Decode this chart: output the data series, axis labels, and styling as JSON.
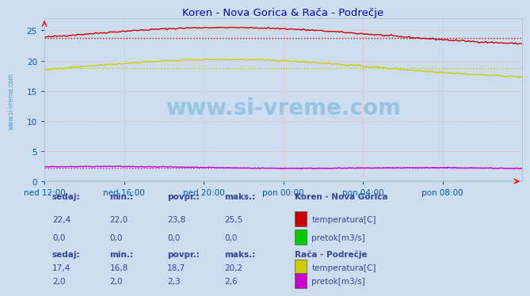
{
  "title": "Koren - Nova Gorica & Rača - Podrečje",
  "title_color": "#0000cc",
  "bg_color": "#ccddef",
  "plot_bg_color": "#ccddef",
  "grid_color": "#ffaaaa",
  "xlabel_color": "#0055aa",
  "ylabel_color": "#0055aa",
  "xlim": [
    0,
    288
  ],
  "ylim": [
    0,
    27
  ],
  "yticks": [
    0,
    5,
    10,
    15,
    20,
    25
  ],
  "xtick_labels": [
    "ned 12:00",
    "ned 16:00",
    "ned 20:00",
    "pon 00:00",
    "pon 04:00",
    "pon 08:00"
  ],
  "xtick_positions": [
    0,
    48,
    96,
    144,
    192,
    240
  ],
  "watermark": "www.si-vreme.com",
  "watermark_color": "#3399cc",
  "sidebar_text": "www.si-vreme.com",
  "sidebar_color": "#3399cc",
  "koren_temp_color": "#cc0000",
  "koren_pretok_color": "#00cc00",
  "raca_temp_color": "#cccc00",
  "raca_pretok_color": "#cc00cc",
  "koren_temp_avg": 23.8,
  "koren_temp_min": 22.0,
  "koren_temp_max": 25.5,
  "koren_temp_sedaj": 22.4,
  "koren_pretok_avg": 0.0,
  "koren_pretok_min": 0.0,
  "koren_pretok_max": 0.0,
  "koren_pretok_sedaj": 0.0,
  "raca_temp_avg": 18.7,
  "raca_temp_min": 16.8,
  "raca_temp_max": 20.2,
  "raca_temp_sedaj": 17.4,
  "raca_pretok_avg": 2.3,
  "raca_pretok_min": 2.0,
  "raca_pretok_max": 2.6,
  "raca_pretok_sedaj": 2.0,
  "n_points": 289,
  "label_color": "#334499",
  "value_color": "#334499",
  "header_color": "#0000cc"
}
